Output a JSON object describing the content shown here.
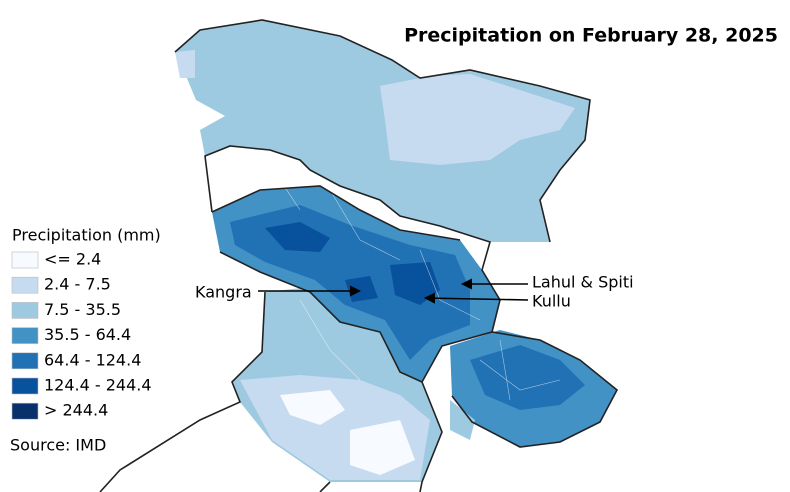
{
  "title": "Precipitation on February 28, 2025",
  "legend": {
    "title": "Precipitation (mm)",
    "items": [
      {
        "label": "<= 2.4",
        "color": "#f7fbff"
      },
      {
        "label": "2.4 - 7.5",
        "color": "#c6dbef"
      },
      {
        "label": "7.5 - 35.5",
        "color": "#9ecae1"
      },
      {
        "label": "35.5 - 64.4",
        "color": "#4292c6"
      },
      {
        "label": "64.4 - 124.4",
        "color": "#2171b5"
      },
      {
        "label": "124.4 - 244.4",
        "color": "#08519c"
      },
      {
        "label": "> 244.4",
        "color": "#08306b"
      }
    ]
  },
  "source": "Source: IMD",
  "annotations": [
    {
      "text": "Kangra"
    },
    {
      "text": "Lahul & Spiti"
    },
    {
      "text": "Kullu"
    }
  ]
}
